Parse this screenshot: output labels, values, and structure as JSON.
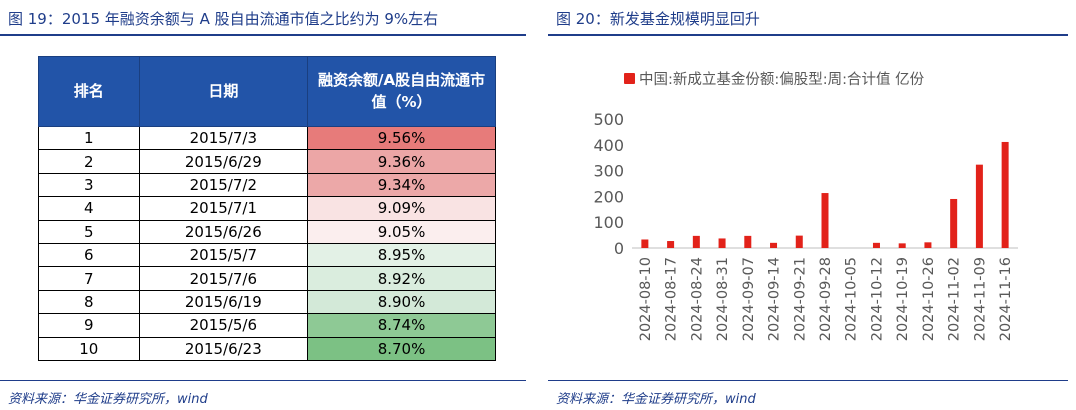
{
  "left": {
    "title": "图 19：2015 年融资余额与 A 股自由流通市值之比约为 9%左右",
    "source": "资料来源：华金证券研究所，wind",
    "headers": [
      "排名",
      "日期",
      "融资余额/A股自由流通市值（%）"
    ],
    "rows": [
      {
        "rank": "1",
        "date": "2015/7/3",
        "ratio": "9.56%",
        "color": "#e77b7a"
      },
      {
        "rank": "2",
        "date": "2015/6/29",
        "ratio": "9.36%",
        "color": "#eca6a6"
      },
      {
        "rank": "3",
        "date": "2015/7/2",
        "ratio": "9.34%",
        "color": "#eca8a8"
      },
      {
        "rank": "4",
        "date": "2015/7/1",
        "ratio": "9.09%",
        "color": "#f9e3e3"
      },
      {
        "rank": "5",
        "date": "2015/6/26",
        "ratio": "9.05%",
        "color": "#fbeeee"
      },
      {
        "rank": "6",
        "date": "2015/5/7",
        "ratio": "8.95%",
        "color": "#e3f1e6"
      },
      {
        "rank": "7",
        "date": "2015/7/6",
        "ratio": "8.92%",
        "color": "#daedde"
      },
      {
        "rank": "8",
        "date": "2015/6/19",
        "ratio": "8.90%",
        "color": "#d3e9d8"
      },
      {
        "rank": "9",
        "date": "2015/5/6",
        "ratio": "8.74%",
        "color": "#8ec995"
      },
      {
        "rank": "10",
        "date": "2015/6/23",
        "ratio": "8.70%",
        "color": "#7cc184"
      }
    ]
  },
  "right": {
    "title": "图 20：新发基金规模明显回升",
    "source": "资料来源：华金证券研究所，wind"
  },
  "chart_data": {
    "type": "bar",
    "title": "",
    "xlabel": "",
    "ylabel": "",
    "ylim": [
      0,
      500
    ],
    "yticks": [
      "500",
      "400",
      "300",
      "200",
      "100",
      "0"
    ],
    "grid": false,
    "legend_position": "top",
    "color": "#e2221a",
    "categories": [
      "2024-08-10",
      "2024-08-17",
      "2024-08-24",
      "2024-08-31",
      "2024-09-07",
      "2024-09-14",
      "2024-09-21",
      "2024-09-28",
      "2024-10-05",
      "2024-10-12",
      "2024-10-19",
      "2024-10-26",
      "2024-11-02",
      "2024-11-09",
      "2024-11-16"
    ],
    "series": [
      {
        "name": "中国:新成立基金份额:偏股型:周:合计值 亿份",
        "values": [
          33,
          27,
          47,
          37,
          47,
          20,
          48,
          213,
          0,
          20,
          18,
          22,
          190,
          323,
          411
        ]
      }
    ]
  }
}
